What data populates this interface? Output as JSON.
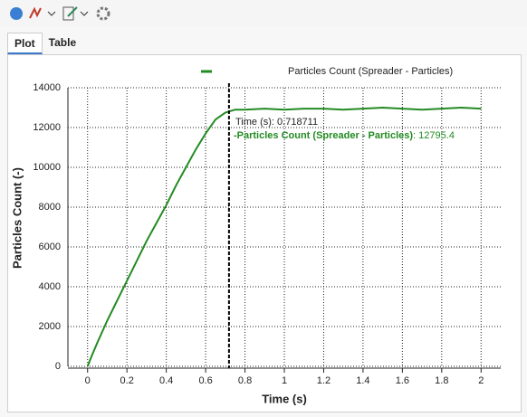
{
  "tabs": [
    "Plot",
    "Table"
  ],
  "chart_data": {
    "type": "line",
    "x_label": "Time (s)",
    "y_label": "Particles Count (-)",
    "xlim": [
      -0.1,
      2.1
    ],
    "ylim": [
      0,
      14000
    ],
    "xticks": [
      0,
      0.2,
      0.4,
      0.6,
      0.8,
      1,
      1.2,
      1.4,
      1.6,
      1.8,
      2
    ],
    "yticks": [
      0,
      2000,
      4000,
      6000,
      8000,
      10000,
      12000,
      14000
    ],
    "grid": true,
    "x": [
      0,
      0.02,
      0.05,
      0.1,
      0.15,
      0.2,
      0.25,
      0.3,
      0.35,
      0.4,
      0.45,
      0.5,
      0.55,
      0.6,
      0.65,
      0.7,
      0.75,
      0.8,
      0.9,
      1.0,
      1.1,
      1.2,
      1.3,
      1.4,
      1.5,
      1.6,
      1.7,
      1.8,
      1.9,
      2.0
    ],
    "series": [
      {
        "name": "Particles Count (Spreader - Particles)",
        "color": "#228b22",
        "values": [
          0,
          500,
          1200,
          2300,
          3300,
          4300,
          5300,
          6300,
          7200,
          8100,
          9100,
          10000,
          10900,
          11700,
          12400,
          12750,
          12900,
          12900,
          12950,
          12900,
          12950,
          12950,
          12900,
          12950,
          13000,
          12950,
          12900,
          12950,
          13000,
          12950
        ]
      }
    ],
    "cursor_x": 0.718711,
    "annotations": [
      "Time (s): 0.718711",
      "-Particles Count (Spreader - Particles)",
      ": 12795.4"
    ]
  }
}
